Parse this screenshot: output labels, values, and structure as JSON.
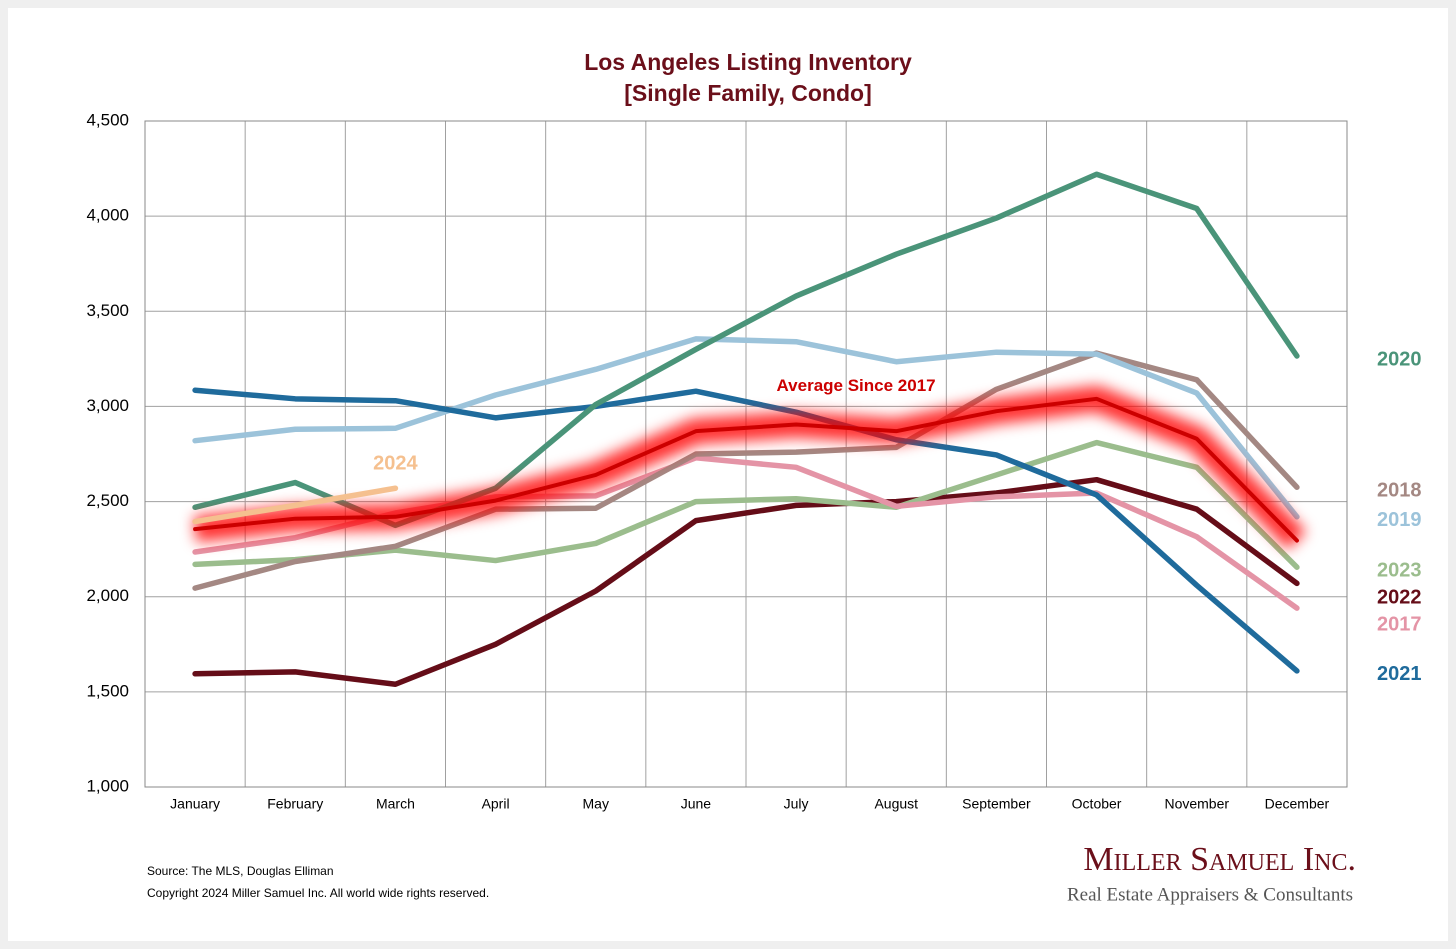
{
  "chart_data": {
    "type": "line",
    "title": "Los Angeles Listing Inventory",
    "subtitle": "[Single Family, Condo]",
    "categories": [
      "January",
      "February",
      "March",
      "April",
      "May",
      "June",
      "July",
      "August",
      "September",
      "October",
      "November",
      "December"
    ],
    "ylim": [
      1000,
      4500
    ],
    "yticks": [
      {
        "value": 1000,
        "label": "1,000"
      },
      {
        "value": 1500,
        "label": "1,500"
      },
      {
        "value": 2000,
        "label": "2,000"
      },
      {
        "value": 2500,
        "label": "2,500"
      },
      {
        "value": 3000,
        "label": "3,000"
      },
      {
        "value": 3500,
        "label": "3,500"
      },
      {
        "value": 4000,
        "label": "4,000"
      },
      {
        "value": 4500,
        "label": "4,500"
      }
    ],
    "grid": true,
    "series": [
      {
        "name": "2022",
        "color": "#650d18",
        "values": [
          1595,
          1605,
          1540,
          1750,
          2030,
          2400,
          2480,
          2500,
          2545,
          2615,
          2460,
          2070
        ]
      },
      {
        "name": "2023",
        "color": "#9bbd8d",
        "values": [
          2170,
          2195,
          2245,
          2190,
          2280,
          2500,
          2515,
          2470,
          2640,
          2810,
          2680,
          2155
        ]
      },
      {
        "name": "2017",
        "color": "#e494a6",
        "values": [
          2235,
          2310,
          2440,
          2525,
          2530,
          2730,
          2680,
          2475,
          2525,
          2545,
          2315,
          1940
        ]
      },
      {
        "name": "2018",
        "color": "#a48883",
        "values": [
          2045,
          2185,
          2265,
          2460,
          2465,
          2750,
          2760,
          2785,
          3090,
          3280,
          3140,
          2575
        ]
      },
      {
        "name": "2019",
        "color": "#9cc3da",
        "values": [
          2820,
          2880,
          2885,
          3060,
          3195,
          3355,
          3340,
          3235,
          3285,
          3275,
          3070,
          2420
        ]
      },
      {
        "name": "2021",
        "color": "#1f6b9c",
        "values": [
          3085,
          3040,
          3030,
          2940,
          3000,
          3080,
          2970,
          2825,
          2745,
          2535,
          2060,
          1610
        ]
      },
      {
        "name": "2020",
        "color": "#4a9479",
        "values": [
          2470,
          2600,
          2375,
          2570,
          3010,
          3300,
          3580,
          3800,
          3990,
          4220,
          4040,
          3265
        ]
      },
      {
        "name": "Average  Since 2017",
        "color": "#cc0000",
        "glow": true,
        "values": [
          2355,
          2410,
          2420,
          2505,
          2640,
          2870,
          2905,
          2870,
          2975,
          3040,
          2830,
          2295
        ]
      },
      {
        "name": "2024",
        "color": "#f5c08f",
        "values": [
          2395,
          2480,
          2570,
          null,
          null,
          null,
          null,
          null,
          null,
          null,
          null,
          null
        ]
      }
    ],
    "source": "Source: The MLS, Douglas Elliman",
    "copyright": "Copyright 2024 Miller Samuel Inc.  All world wide rights reserved.",
    "logo": "Miller Samuel Inc.",
    "logo_tagline": "Real Estate Appraisers & Consultants"
  }
}
